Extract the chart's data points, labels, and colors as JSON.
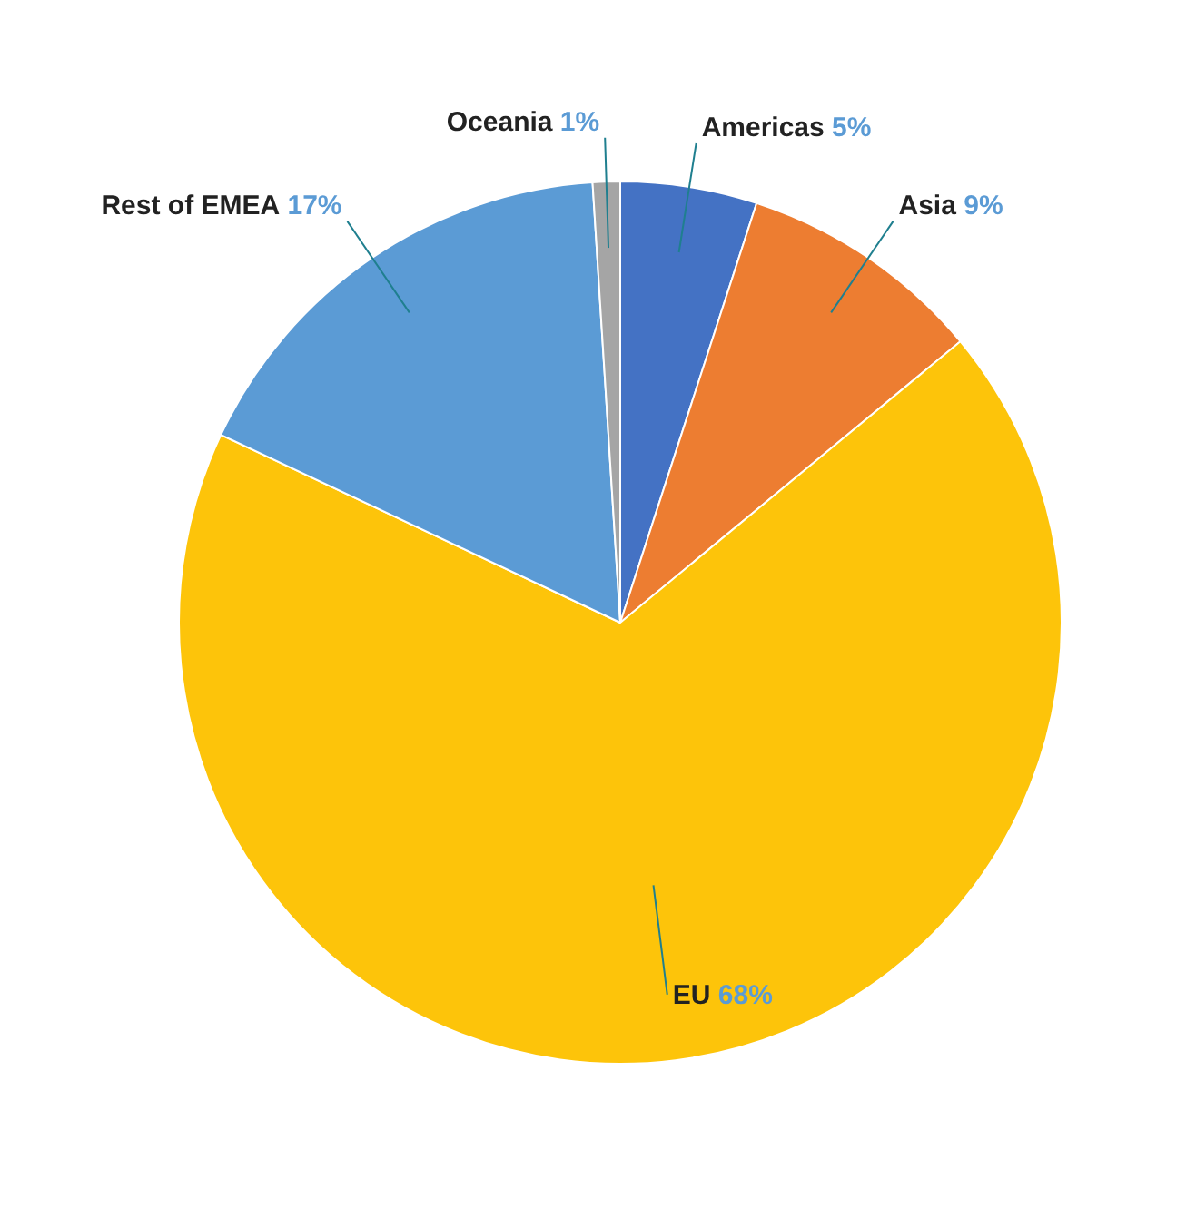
{
  "chart_data": {
    "type": "pie",
    "categories": [
      "Americas",
      "Asia",
      "EU",
      "Rest of EMEA",
      "Oceania"
    ],
    "values": [
      5,
      9,
      68,
      17,
      1
    ],
    "value_labels": [
      "5%",
      "9%",
      "68%",
      "17%",
      "1%"
    ],
    "colors": [
      "#4472c4",
      "#ed7d31",
      "#fdc40a",
      "#5b9bd5",
      "#a5a5a5"
    ],
    "legend": false
  }
}
